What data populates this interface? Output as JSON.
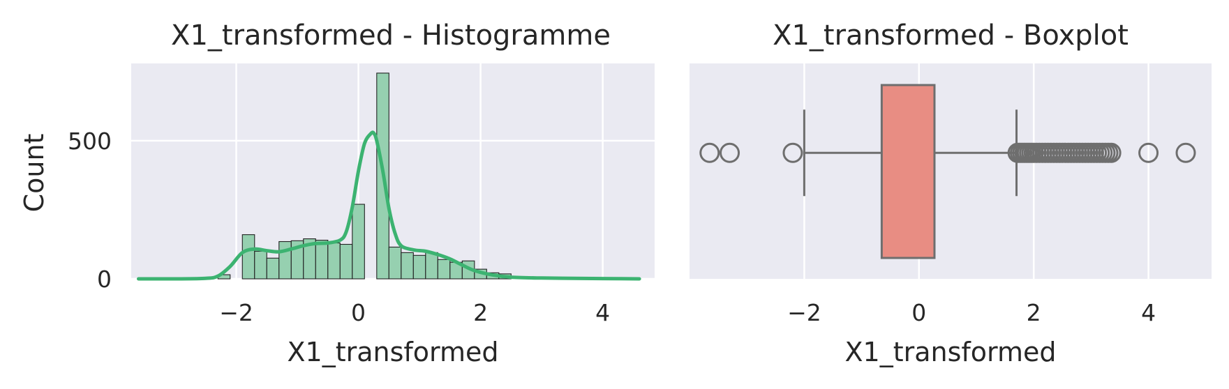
{
  "chart_data": [
    {
      "type": "bar",
      "title": "X1_transformed - Histogramme",
      "xlabel": "X1_transformed",
      "ylabel": "Count",
      "xlim": [
        -3.72,
        4.85
      ],
      "ylim": [
        0,
        780
      ],
      "xticks": [
        -2,
        0,
        2,
        4
      ],
      "yticks": [
        0,
        500
      ],
      "xtick_labels": [
        "−2",
        "0",
        "2",
        "4"
      ],
      "ytick_labels": [
        "0",
        "500"
      ],
      "grid": true,
      "bin_width": 0.2,
      "bins": [
        {
          "x0": -2.3,
          "x1": -2.1,
          "count": 15
        },
        {
          "x0": -2.1,
          "x1": -1.9,
          "count": 0
        },
        {
          "x0": -1.9,
          "x1": -1.7,
          "count": 160
        },
        {
          "x0": -1.7,
          "x1": -1.5,
          "count": 100
        },
        {
          "x0": -1.5,
          "x1": -1.3,
          "count": 75
        },
        {
          "x0": -1.3,
          "x1": -1.1,
          "count": 135
        },
        {
          "x0": -1.1,
          "x1": -0.9,
          "count": 138
        },
        {
          "x0": -0.9,
          "x1": -0.7,
          "count": 145
        },
        {
          "x0": -0.7,
          "x1": -0.5,
          "count": 140
        },
        {
          "x0": -0.5,
          "x1": -0.3,
          "count": 130
        },
        {
          "x0": -0.3,
          "x1": -0.1,
          "count": 125
        },
        {
          "x0": -0.1,
          "x1": 0.1,
          "count": 270
        },
        {
          "x0": 0.1,
          "x1": 0.3,
          "count": 0
        },
        {
          "x0": 0.3,
          "x1": 0.5,
          "count": 745
        },
        {
          "x0": 0.5,
          "x1": 0.7,
          "count": 115
        },
        {
          "x0": 0.7,
          "x1": 0.9,
          "count": 95
        },
        {
          "x0": 0.9,
          "x1": 1.1,
          "count": 85
        },
        {
          "x0": 1.1,
          "x1": 1.3,
          "count": 95
        },
        {
          "x0": 1.3,
          "x1": 1.5,
          "count": 70
        },
        {
          "x0": 1.5,
          "x1": 1.7,
          "count": 60
        },
        {
          "x0": 1.7,
          "x1": 1.9,
          "count": 65
        },
        {
          "x0": 1.9,
          "x1": 2.1,
          "count": 35
        },
        {
          "x0": 2.1,
          "x1": 2.3,
          "count": 22
        },
        {
          "x0": 2.3,
          "x1": 2.5,
          "count": 18
        }
      ],
      "kde": {
        "x": [
          -3.6,
          -3.0,
          -2.5,
          -2.3,
          -2.1,
          -1.9,
          -1.7,
          -1.5,
          -1.3,
          -1.1,
          -0.9,
          -0.7,
          -0.5,
          -0.3,
          -0.2,
          -0.1,
          0.0,
          0.1,
          0.2,
          0.25,
          0.3,
          0.4,
          0.5,
          0.6,
          0.7,
          0.9,
          1.1,
          1.3,
          1.5,
          1.7,
          1.9,
          2.2,
          2.5,
          3.0,
          3.5,
          4.0,
          4.6
        ],
        "y": [
          0,
          0,
          2,
          10,
          45,
          95,
          108,
          102,
          98,
          108,
          120,
          128,
          130,
          140,
          170,
          260,
          390,
          490,
          525,
          528,
          500,
          390,
          255,
          165,
          120,
          105,
          100,
          88,
          72,
          50,
          30,
          14,
          6,
          3,
          2,
          1,
          0
        ]
      },
      "colors": {
        "bar": "#96d0b0",
        "bar_edge": "#222222",
        "kde": "#3cb371",
        "panel": "#eaeaf2",
        "grid": "#ffffff"
      }
    },
    {
      "type": "box",
      "title": "X1_transformed - Boxplot",
      "xlabel": "X1_transformed",
      "ylabel": "",
      "xlim": [
        -4.0,
        5.1
      ],
      "xticks": [
        -2,
        0,
        2,
        4
      ],
      "xtick_labels": [
        "−2",
        "0",
        "2",
        "4"
      ],
      "grid": true,
      "stats": {
        "whisker_low": -2.0,
        "q1": -0.65,
        "q3": 0.27,
        "whisker_high": 1.7
      },
      "outliers": [
        -3.65,
        -3.3,
        -2.2,
        1.72,
        1.76,
        1.8,
        1.84,
        1.88,
        1.92,
        1.96,
        2.0,
        2.05,
        2.1,
        2.15,
        2.2,
        2.25,
        2.3,
        2.35,
        2.4,
        2.45,
        2.5,
        2.55,
        2.6,
        2.65,
        2.7,
        2.75,
        2.8,
        2.85,
        2.9,
        2.95,
        3.0,
        3.05,
        3.1,
        3.15,
        3.2,
        3.25,
        3.3,
        3.35,
        4.0,
        4.65
      ],
      "colors": {
        "box": "#e88d83",
        "line": "#6e6e6e",
        "panel": "#eaeaf2",
        "grid": "#ffffff"
      }
    }
  ]
}
